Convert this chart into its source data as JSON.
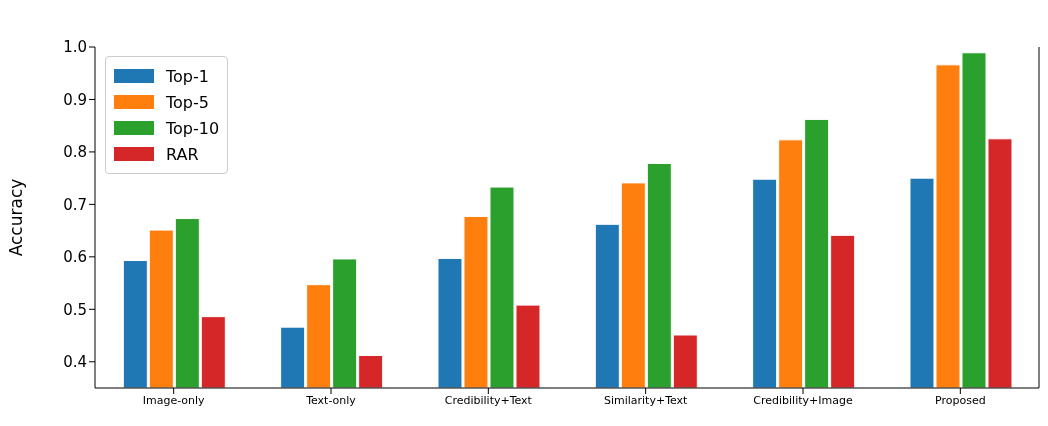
{
  "chart_data": {
    "type": "bar",
    "ylabel": "Accuracy",
    "categories": [
      "Image-only",
      "Text-only",
      "Credibility+Text",
      "Similarity+Text",
      "Credibility+Image",
      "Proposed"
    ],
    "series": [
      {
        "name": "Top-1",
        "color": "#1f77b4",
        "values": [
          0.593,
          0.466,
          0.597,
          0.662,
          0.748,
          0.75
        ]
      },
      {
        "name": "Top-5",
        "color": "#ff7f0e",
        "values": [
          0.651,
          0.547,
          0.677,
          0.741,
          0.823,
          0.966
        ]
      },
      {
        "name": "Top-10",
        "color": "#2ca02c",
        "values": [
          0.673,
          0.596,
          0.733,
          0.778,
          0.862,
          0.989
        ]
      },
      {
        "name": "RAR",
        "color": "#d62728",
        "values": [
          0.486,
          0.412,
          0.508,
          0.451,
          0.641,
          0.825
        ]
      }
    ],
    "ylim": [
      0.35,
      1.0
    ],
    "yticks": [
      0.4,
      0.5,
      0.6,
      0.7,
      0.8,
      0.9,
      {
        "value": 1.0,
        "label": "1.0"
      }
    ],
    "grid": false,
    "legend": "top left"
  }
}
